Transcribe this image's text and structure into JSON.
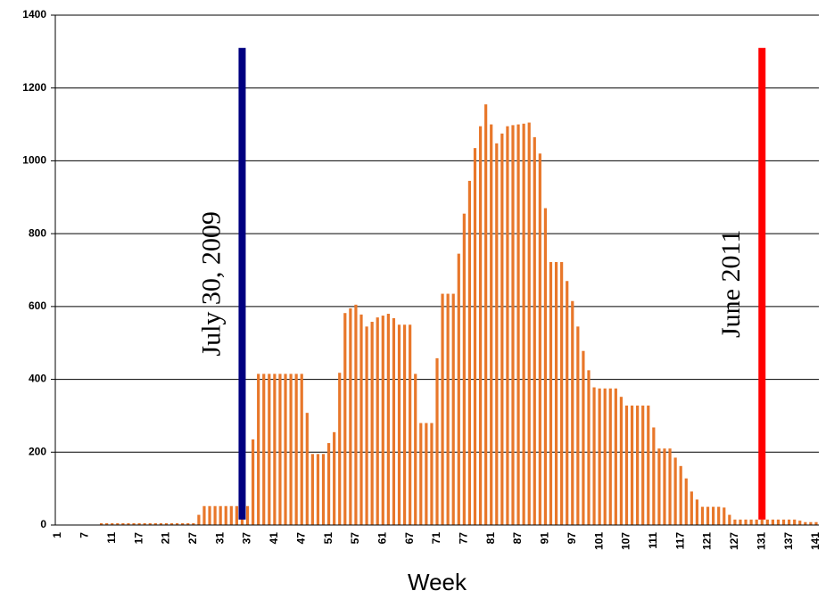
{
  "chart_data": {
    "type": "bar",
    "x_label": "Week",
    "categories": [
      "1",
      null,
      null,
      null,
      null,
      "7",
      null,
      null,
      null,
      null,
      "11",
      null,
      null,
      null,
      null,
      "17",
      null,
      null,
      null,
      null,
      "21",
      null,
      null,
      null,
      null,
      "27",
      null,
      null,
      null,
      null,
      "31",
      null,
      null,
      null,
      null,
      "37",
      null,
      null,
      null,
      null,
      "41",
      null,
      null,
      null,
      null,
      "47",
      null,
      null,
      null,
      null,
      "51",
      null,
      null,
      null,
      null,
      "57",
      null,
      null,
      null,
      null,
      "61",
      null,
      null,
      null,
      null,
      "67",
      null,
      null,
      null,
      null,
      "71",
      null,
      null,
      null,
      null,
      "77",
      null,
      null,
      null,
      null,
      "81",
      null,
      null,
      null,
      null,
      "87",
      null,
      null,
      null,
      null,
      "91",
      null,
      null,
      null,
      null,
      "97",
      null,
      null,
      null,
      null,
      "101",
      null,
      null,
      null,
      null,
      "107",
      null,
      null,
      null,
      null,
      "111",
      null,
      null,
      null,
      null,
      "117",
      null,
      null,
      null,
      null,
      "121",
      null,
      null,
      null,
      null,
      "127",
      null,
      null,
      null,
      null,
      "131",
      null,
      null,
      null,
      null,
      "137",
      null,
      null,
      null,
      null,
      "141"
    ],
    "values": [
      0,
      0,
      0,
      0,
      0,
      0,
      0,
      0,
      5,
      5,
      5,
      5,
      5,
      5,
      5,
      5,
      5,
      5,
      5,
      5,
      5,
      5,
      5,
      5,
      5,
      5,
      28,
      52,
      52,
      52,
      52,
      52,
      52,
      52,
      52,
      52,
      235,
      415,
      415,
      415,
      415,
      415,
      415,
      415,
      415,
      415,
      308,
      195,
      195,
      195,
      225,
      255,
      418,
      582,
      595,
      605,
      578,
      545,
      558,
      570,
      575,
      580,
      568,
      550,
      550,
      550,
      415,
      280,
      280,
      280,
      458,
      635,
      635,
      635,
      745,
      855,
      945,
      1035,
      1095,
      1155,
      1100,
      1048,
      1075,
      1095,
      1098,
      1100,
      1102,
      1105,
      1065,
      1020,
      870,
      722,
      722,
      722,
      670,
      615,
      545,
      478,
      425,
      378,
      375,
      375,
      375,
      375,
      352,
      328,
      328,
      328,
      328,
      328,
      268,
      210,
      210,
      210,
      185,
      162,
      128,
      92,
      70,
      50,
      50,
      50,
      50,
      48,
      28,
      15,
      15,
      15,
      15,
      15,
      15,
      15,
      15,
      15,
      15,
      15,
      15,
      12,
      8,
      8,
      8
    ],
    "color": "#e8772a",
    "ylim": [
      0,
      1400
    ],
    "yticks": [
      0,
      200,
      400,
      600,
      800,
      1000,
      1200,
      1400
    ],
    "grid": true,
    "annotations": [
      {
        "text": "July 30, 2009",
        "x": 35,
        "y": [
          15,
          1310
        ],
        "color": "#000080"
      },
      {
        "text": "June 2011",
        "x": 131,
        "y": [
          15,
          1310
        ],
        "color": "#ff0000"
      }
    ]
  }
}
